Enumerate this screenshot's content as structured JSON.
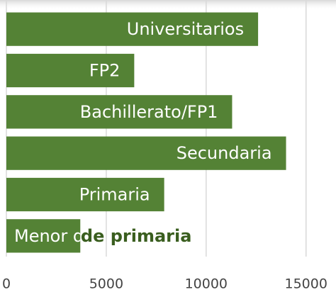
{
  "chart_data": {
    "type": "bar",
    "orientation": "horizontal",
    "categories": [
      "Universitarios",
      "FP2",
      "Bachillerato/FP1",
      "Secundaria",
      "Primaria",
      "Menor de primaria"
    ],
    "values": [
      12600,
      6400,
      11300,
      14000,
      7900,
      3700
    ],
    "color": "#548235",
    "xlim": [
      0,
      16500
    ],
    "xticks": [
      0,
      5000,
      10000,
      15000
    ],
    "grid": true
  }
}
